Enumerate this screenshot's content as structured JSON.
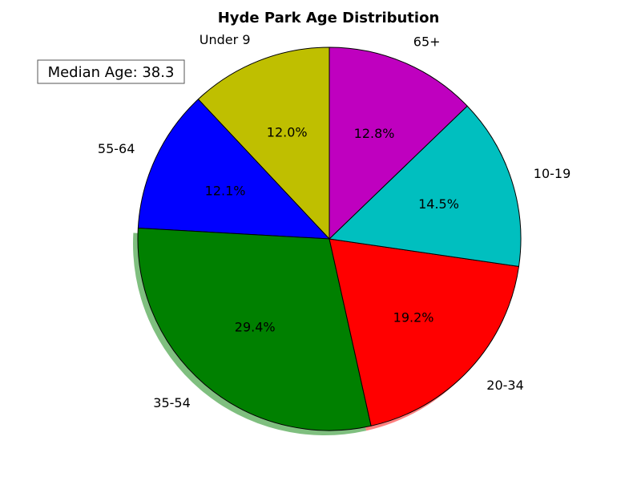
{
  "chart_data": {
    "type": "pie",
    "title": "Hyde Park Age Distribution",
    "annotation": "Median Age: 38.3",
    "slices": [
      {
        "label": "Under 9",
        "value": 12.0,
        "pct_label": "12.0%",
        "color": "#bfbf00",
        "shadow": false
      },
      {
        "label": "55-64",
        "value": 12.1,
        "pct_label": "12.1%",
        "color": "#0000ff",
        "shadow": false
      },
      {
        "label": "35-54",
        "value": 29.4,
        "pct_label": "29.4%",
        "color": "#008000",
        "shadow": true
      },
      {
        "label": "20-34",
        "value": 19.2,
        "pct_label": "19.2%",
        "color": "#ff0000",
        "shadow": true
      },
      {
        "label": "10-19",
        "value": 14.5,
        "pct_label": "14.5%",
        "color": "#00bfbf",
        "shadow": false
      },
      {
        "label": "65+",
        "value": 12.8,
        "pct_label": "12.8%",
        "color": "#bf00bf",
        "shadow": false
      }
    ],
    "start_angle_deg": 90,
    "direction": "counterclockwise"
  }
}
